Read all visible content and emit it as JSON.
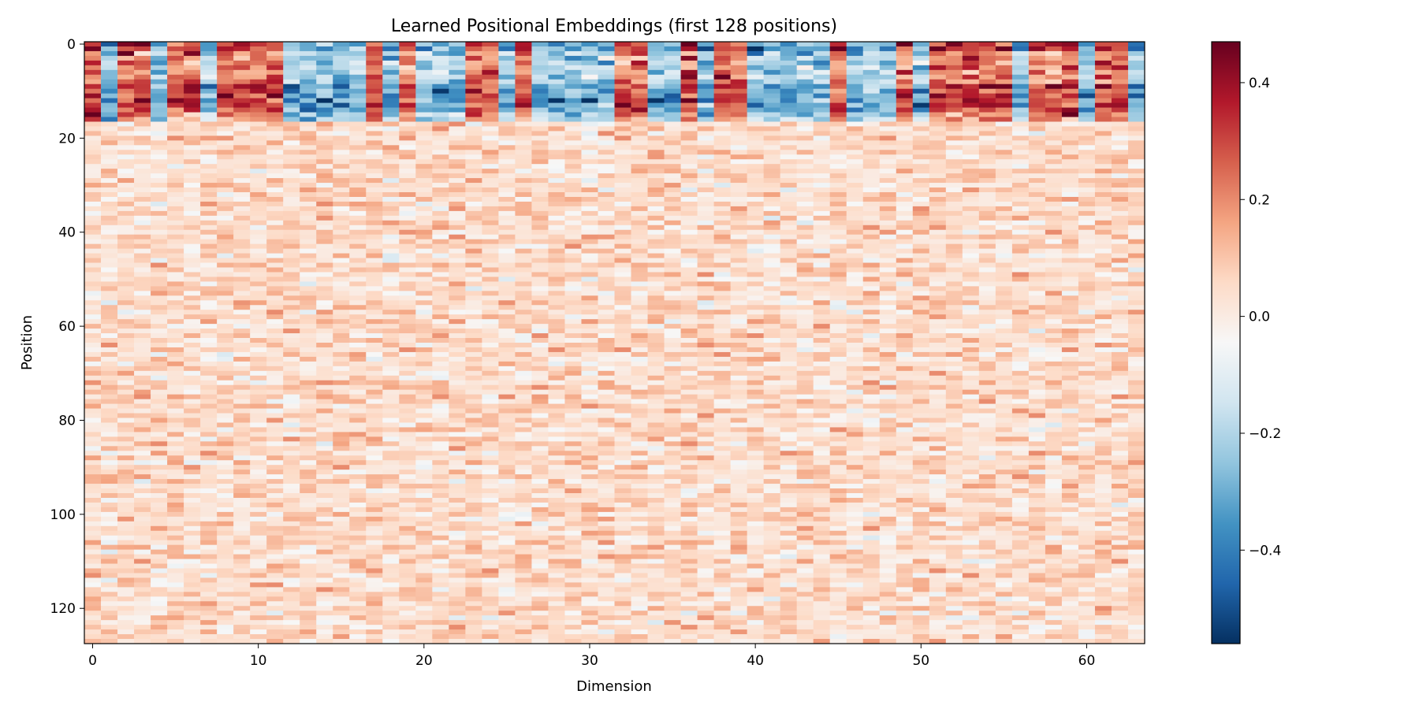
{
  "chart_data": {
    "type": "heatmap",
    "title": "Learned Positional Embeddings (first 128 positions)",
    "xlabel": "Dimension",
    "ylabel": "Position",
    "n_rows": 128,
    "n_cols": 64,
    "xlim": [
      -0.5,
      63.5
    ],
    "ylim": [
      127.5,
      -0.5
    ],
    "x_ticks": [
      0,
      10,
      20,
      30,
      40,
      50,
      60
    ],
    "x_tick_labels": [
      "0",
      "10",
      "20",
      "30",
      "40",
      "50",
      "60"
    ],
    "y_ticks": [
      0,
      20,
      40,
      60,
      80,
      100,
      120
    ],
    "y_tick_labels": [
      "0",
      "20",
      "40",
      "60",
      "80",
      "100",
      "120"
    ],
    "colormap": "RdBu_r",
    "colormap_stops": [
      "#053061",
      "#2166ac",
      "#4393c3",
      "#92c5de",
      "#d1e5f0",
      "#f7f7f7",
      "#fddbc7",
      "#f4a582",
      "#d6604d",
      "#b2182b",
      "#67001f"
    ],
    "color_range": [
      -0.56,
      0.47
    ],
    "colorbar_ticks": [
      0.4,
      0.2,
      0.0,
      -0.2,
      -0.4
    ],
    "colorbar_tick_labels": [
      "0.4",
      "0.2",
      "0.0",
      "−0.2",
      "−0.4"
    ],
    "grid": false,
    "value_pattern": {
      "description": "Rows 0-16 contain strong positive and negative values in many columns; rows 17-127 contain weak values mostly between about -0.1 and 0.2.",
      "strong_rows": [
        0,
        16
      ],
      "strong_value_range": [
        -0.56,
        0.47
      ],
      "weak_value_range": [
        -0.12,
        0.2
      ]
    }
  }
}
